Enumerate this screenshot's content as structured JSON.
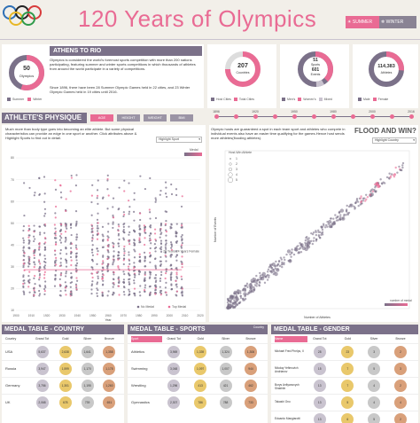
{
  "header": {
    "title": "120 Years of Olympics",
    "summer_label": "SUMMER",
    "winter_label": "WINTER",
    "colors": {
      "title": "#e96b94",
      "accent": "#e96b94",
      "purple": "#7b7189"
    }
  },
  "athens": {
    "title": "ATHENS TO RIO",
    "donut_value": "50",
    "donut_label": "Olympics",
    "text1": "Olympics is considered the world's foremost sports competition with more than 200 nations participating, featuring summer and winter sports competitions in which thousands of athletes from around the world participate in a variety of competitions.",
    "text2": "Since 1896, there have been 28 Summer Olympic Games held in 22 cities, and 23 Winter Olympic Games held in 19 cities until 2016.",
    "legend": [
      "Summer",
      "Winter"
    ]
  },
  "stats": [
    {
      "value": "207",
      "label": "Countries",
      "legend": [
        "Host Cities",
        "Total Cities"
      ]
    },
    {
      "value_top": "51",
      "value_mid": "Sports",
      "value_bot": "601",
      "value_bot2": "Events",
      "legend": [
        "Men's",
        "Women's",
        "Mixed"
      ]
    },
    {
      "value": "114,383",
      "label": "Athletes",
      "legend": [
        "Male",
        "Female"
      ]
    }
  ],
  "timeline": {
    "ticks": [
      "1896",
      "1920",
      "1950",
      "1980",
      "2000",
      "2016"
    ]
  },
  "physique": {
    "title": "ATHLETE'S PHYSIQUE",
    "tabs": [
      "AGE",
      "HEIGHT",
      "WEIGHT",
      "BMI"
    ],
    "text": "Much more than body type goes into becoming an elite athlete. But some physical characteristics can provide an edge in one sport or another. Click attributes above & Highlight Sports to find out in detail.",
    "filter": "Highlight Sport",
    "medal_label": "Medal",
    "xlabel": "Year",
    "yticks": [
      "80",
      "70",
      "60",
      "50",
      "40",
      "30",
      "20",
      "10"
    ],
    "xticks": [
      "1900",
      "1910",
      "1920",
      "1930",
      "1940",
      "1950",
      "1960",
      "1970",
      "1980",
      "1990",
      "2000",
      "2010",
      "2020"
    ],
    "annotation": "26 Years 24 Years Female",
    "legend": [
      "No Medal",
      "Top Medal"
    ]
  },
  "flood": {
    "title": "FLOOD AND WIN?",
    "text": "Olympic hosts are guaranteed a spot in each team sport and athletes who compete in individual events also have an easier time qualifying for the games.Hence host sends more athletes(flooding athletes).",
    "filter": "Highlight Country",
    "legend_title": "Host-Win Athlete",
    "legend_items": [
      "1",
      "2",
      "3",
      "4",
      "5"
    ],
    "xlabel": "Number of Athletes",
    "ylabel": "Number of Events",
    "medal_legend": "number of medal"
  },
  "medal_country": {
    "title": "MEDAL TABLE - COUNTRY",
    "columns": [
      "Country",
      "Grand Tot",
      "Gold",
      "Silver",
      "Bronze"
    ],
    "rows": [
      {
        "name": "USA",
        "grand": "5,637",
        "gold": "2,638",
        "silver": "1,641",
        "bronze": "1,358"
      },
      {
        "name": "Russia",
        "grand": "3,947",
        "gold": "1,599",
        "silver": "1,170",
        "bronze": "1,178"
      },
      {
        "name": "Germany",
        "grand": "3,756",
        "gold": "1,301",
        "silver": "1,195",
        "bronze": "1,260"
      },
      {
        "name": "UK",
        "grand": "2,068",
        "gold": "678",
        "silver": "739",
        "bronze": "651"
      }
    ]
  },
  "medal_sports": {
    "title": "MEDAL TABLE - SPORTS",
    "filter_label": "Country",
    "columns": [
      "Sport",
      "Grand Tot",
      "Gold",
      "Silver",
      "Bronze"
    ],
    "rows": [
      {
        "name": "Athletics",
        "grand": "3,969",
        "gold": "1,339",
        "silver": "1,324",
        "bronze": "1,306"
      },
      {
        "name": "Swimming",
        "grand": "3,048",
        "gold": "1,097",
        "silver": "1,007",
        "bronze": "944"
      },
      {
        "name": "Wrestling",
        "grand": "1,296",
        "gold": "413",
        "silver": "421",
        "bronze": "462"
      },
      {
        "name": "Gymnastics",
        "grand": "2,307",
        "gold": "786",
        "silver": "788",
        "bronze": "733"
      }
    ]
  },
  "medal_gender": {
    "title": "MEDAL TABLE - GENDER",
    "columns": [
      "Name",
      "Grand Tot",
      "Gold",
      "Silver",
      "Bronze"
    ],
    "rows": [
      {
        "name": "Michael Fred Phelps, II",
        "grand": "28",
        "gold": "23",
        "silver": "3",
        "bronze": "2"
      },
      {
        "name": "Nikolay Yefimovich Andrianov",
        "grand": "15",
        "gold": "7",
        "silver": "5",
        "bronze": "3"
      },
      {
        "name": "Borys Anfiyanovych Shakhlin",
        "grand": "13",
        "gold": "7",
        "silver": "4",
        "bronze": "2"
      },
      {
        "name": "Takashi Ono",
        "grand": "13",
        "gold": "5",
        "silver": "4",
        "bronze": "4"
      },
      {
        "name": "Edoardo Mangiarotti",
        "grand": "13",
        "gold": "6",
        "silver": "5",
        "bronze": "2"
      }
    ]
  }
}
